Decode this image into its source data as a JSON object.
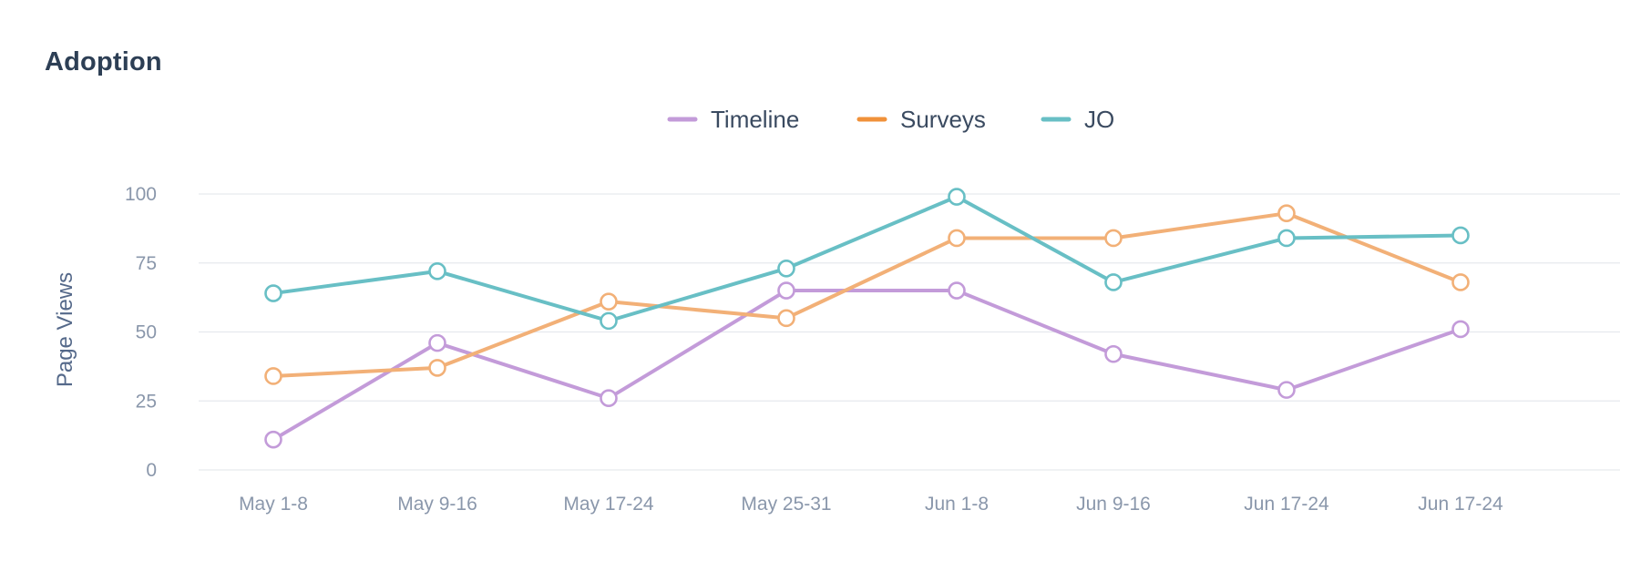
{
  "chart_data": {
    "type": "line",
    "title": "Adoption",
    "ylabel": "Page Views",
    "xlabel": "",
    "categories": [
      "May 1-8",
      "May 9-16",
      "May 17-24",
      "May 25-31",
      "Jun 1-8",
      "Jun 9-16",
      "Jun 17-24",
      "Jun 17-24"
    ],
    "ylim": [
      0,
      100
    ],
    "yticks": [
      0,
      25,
      50,
      75,
      100
    ],
    "grid": true,
    "legend_position": "top-center",
    "series": [
      {
        "name": "Timeline",
        "color": "#c39bd9",
        "legend_color": "#c39bd9",
        "values": [
          11,
          46,
          26,
          65,
          65,
          42,
          29,
          51
        ]
      },
      {
        "name": "Surveys",
        "color": "#f2b077",
        "legend_color": "#f0913a",
        "values": [
          34,
          37,
          61,
          55,
          84,
          84,
          93,
          68
        ]
      },
      {
        "name": "JO",
        "color": "#68bfc5",
        "legend_color": "#68bfc5",
        "values": [
          64,
          72,
          54,
          73,
          99,
          68,
          84,
          85
        ]
      }
    ]
  }
}
